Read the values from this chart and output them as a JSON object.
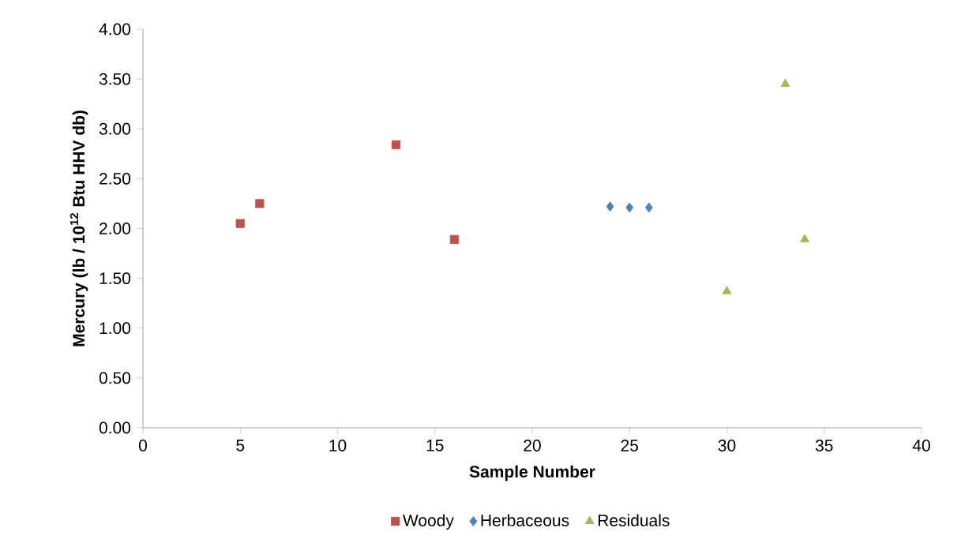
{
  "chart_data": {
    "type": "scatter",
    "xlabel": "Sample Number",
    "ylabel": "Mercury (lb / 10$^{12}$ Btu HHV db)",
    "xlim": [
      0,
      40
    ],
    "xticks": [
      0,
      5,
      10,
      15,
      20,
      25,
      30,
      35,
      40
    ],
    "ylim": [
      0,
      4
    ],
    "yticks": [
      {
        "value": 0,
        "label": "0.00"
      },
      {
        "value": 0.5,
        "label": "0.50"
      },
      {
        "value": 1,
        "label": "1.00"
      },
      {
        "value": 1.5,
        "label": "1.50"
      },
      {
        "value": 2,
        "label": "2.00"
      },
      {
        "value": 2.5,
        "label": "2.50"
      },
      {
        "value": 3,
        "label": "3.00"
      },
      {
        "value": 3.5,
        "label": "3.50"
      },
      {
        "value": 4,
        "label": "4.00"
      }
    ],
    "grid": false,
    "legend": "bottom",
    "series": [
      {
        "name": "Woody",
        "color": "#c0504d",
        "marker": "square",
        "x": [
          5,
          6,
          13,
          16
        ],
        "values": [
          2.05,
          2.25,
          2.84,
          1.89
        ]
      },
      {
        "name": "Herbaceous",
        "color": "#4f81bd",
        "marker": "diamond",
        "x": [
          24,
          25,
          26
        ],
        "values": [
          2.22,
          2.21,
          2.21
        ]
      },
      {
        "name": "Residuals",
        "color": "#9bbb59",
        "marker": "triangle",
        "x": [
          30,
          33,
          34
        ],
        "values": [
          1.37,
          3.45,
          1.89
        ]
      }
    ]
  }
}
